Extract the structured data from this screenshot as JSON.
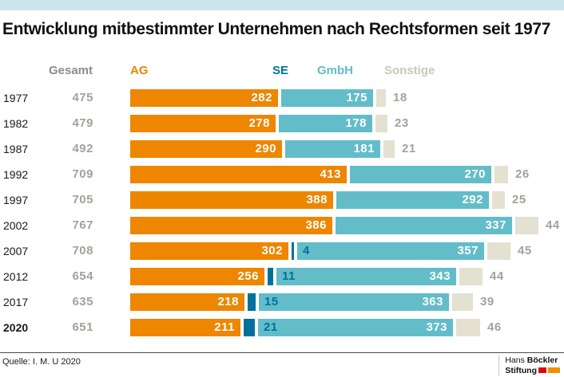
{
  "header": {
    "title": "Entwicklung mitbestimmter Unternehmen nach Rechtsformen seit 1977"
  },
  "colors": {
    "top_strip": "#cfe5ee",
    "value_gray": "#a3a29a",
    "logo_red": "#e3000f",
    "logo_orange": "#f18f00"
  },
  "chart_data": {
    "type": "bar",
    "variant": "horizontal-stacked",
    "title": "Entwicklung mitbestimmter Unternehmen nach Rechtsformen seit 1977",
    "xlabel": "",
    "ylabel": "",
    "grid": false,
    "legend_position": "top",
    "total_label": "Gesamt",
    "categories": [
      "1977",
      "1982",
      "1987",
      "1992",
      "1997",
      "2002",
      "2007",
      "2012",
      "2017",
      "2020"
    ],
    "bold_category": "2020",
    "totals": [
      475,
      479,
      492,
      709,
      705,
      767,
      708,
      654,
      635,
      651
    ],
    "series": [
      {
        "name": "AG",
        "color": "#ee8600",
        "label_style": "inside-white",
        "values": [
          282,
          278,
          290,
          413,
          388,
          386,
          302,
          256,
          218,
          211
        ]
      },
      {
        "name": "SE",
        "color": "#00719c",
        "label_style": "outside-blue",
        "values": [
          null,
          null,
          null,
          null,
          null,
          null,
          4,
          11,
          15,
          21
        ]
      },
      {
        "name": "GmbH",
        "color": "#62bdc9",
        "label_style": "inside-white",
        "values": [
          175,
          178,
          181,
          270,
          292,
          337,
          357,
          343,
          363,
          373
        ]
      },
      {
        "name": "Sonstige",
        "color": "#e4e1d1",
        "label_style": "outside-gray",
        "values": [
          18,
          23,
          21,
          26,
          25,
          44,
          45,
          44,
          39,
          46
        ]
      }
    ],
    "legend": {
      "total": {
        "label": "Gesamt",
        "color": "#8c8c8c"
      },
      "ag": {
        "label": "AG",
        "color": "#ee8600"
      },
      "se": {
        "label": "SE",
        "color": "#00719c"
      },
      "gmbh": {
        "label": "GmbH",
        "color": "#62bdc9"
      },
      "sonstige": {
        "label": "Sonstige",
        "color": "#c9c7ba"
      }
    }
  },
  "footer": {
    "source": "Quelle: I. M. U 2020",
    "logo": {
      "name_regular": "Hans ",
      "name_bold": "Böckler",
      "line2_bold": "Stiftung"
    }
  }
}
